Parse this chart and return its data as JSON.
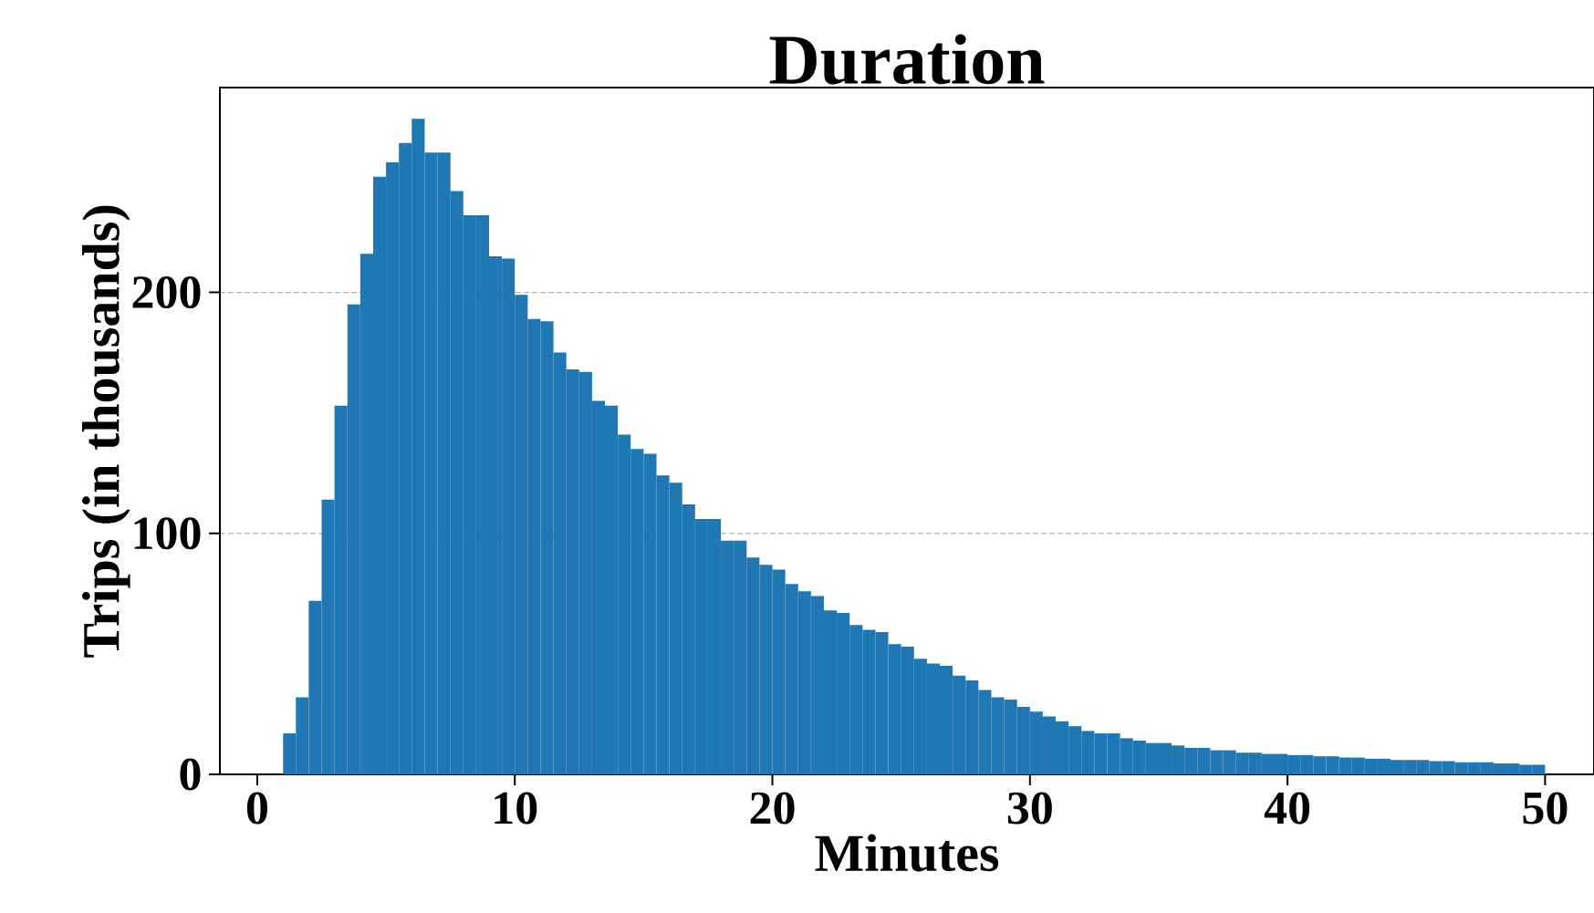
{
  "chart_data": {
    "type": "histogram",
    "title": "Duration",
    "xlabel": "Minutes",
    "ylabel": "Trips (in thousands)",
    "bins": [
      1,
      1.5,
      2,
      2.5,
      3,
      3.5,
      4,
      4.5,
      5,
      5.5,
      6,
      6.5,
      7,
      7.5,
      8,
      8.5,
      9,
      9.5,
      10,
      10.5,
      11,
      11.5,
      12,
      12.5,
      13,
      13.5,
      14,
      14.5,
      15,
      15.5,
      16,
      16.5,
      17,
      17.5,
      18,
      18.5,
      19,
      19.5,
      20,
      20.5,
      21,
      21.5,
      22,
      22.5,
      23,
      23.5,
      24,
      24.5,
      25,
      25.5,
      26,
      26.5,
      27,
      27.5,
      28,
      28.5,
      29,
      29.5,
      30,
      30.5,
      31,
      31.5,
      32,
      32.5,
      33,
      33.5,
      34,
      34.5,
      35,
      35.5,
      36,
      36.5,
      37,
      37.5,
      38,
      38.5,
      39,
      39.5,
      40,
      40.5,
      41,
      41.5,
      42,
      42.5,
      43,
      43.5,
      44,
      44.5,
      45,
      45.5,
      46,
      46.5,
      47,
      47.5,
      48,
      48.5,
      49,
      49.5,
      50
    ],
    "values": [
      17,
      32,
      72,
      114,
      153,
      195,
      216,
      248,
      254,
      262,
      272,
      258,
      258,
      242,
      232,
      232,
      215,
      214,
      199,
      189,
      188,
      175,
      168,
      167,
      155,
      153,
      141,
      135,
      133,
      124,
      121,
      112,
      106,
      106,
      97,
      97,
      90,
      87,
      85,
      79,
      76,
      74,
      68,
      67,
      62,
      60,
      59,
      54,
      53,
      48,
      46,
      45,
      41,
      39,
      35,
      32,
      31,
      28,
      26,
      24,
      22,
      20,
      18,
      17,
      17,
      15,
      14,
      13,
      13,
      12,
      11,
      11,
      10,
      10,
      9,
      9,
      8.5,
      8.5,
      8,
      8,
      7.5,
      7.5,
      7,
      7,
      6.5,
      6.5,
      6,
      6,
      6,
      5.5,
      5.5,
      5,
      5,
      5,
      4.5,
      4.5,
      4,
      4
    ],
    "color": "#1f77b4",
    "xlim": [
      -1.45,
      51.9
    ],
    "ylim": [
      0,
      285
    ],
    "xticks": [
      0,
      10,
      20,
      30,
      40,
      50
    ],
    "yticks": [
      0,
      100,
      200
    ],
    "grid": "y"
  }
}
